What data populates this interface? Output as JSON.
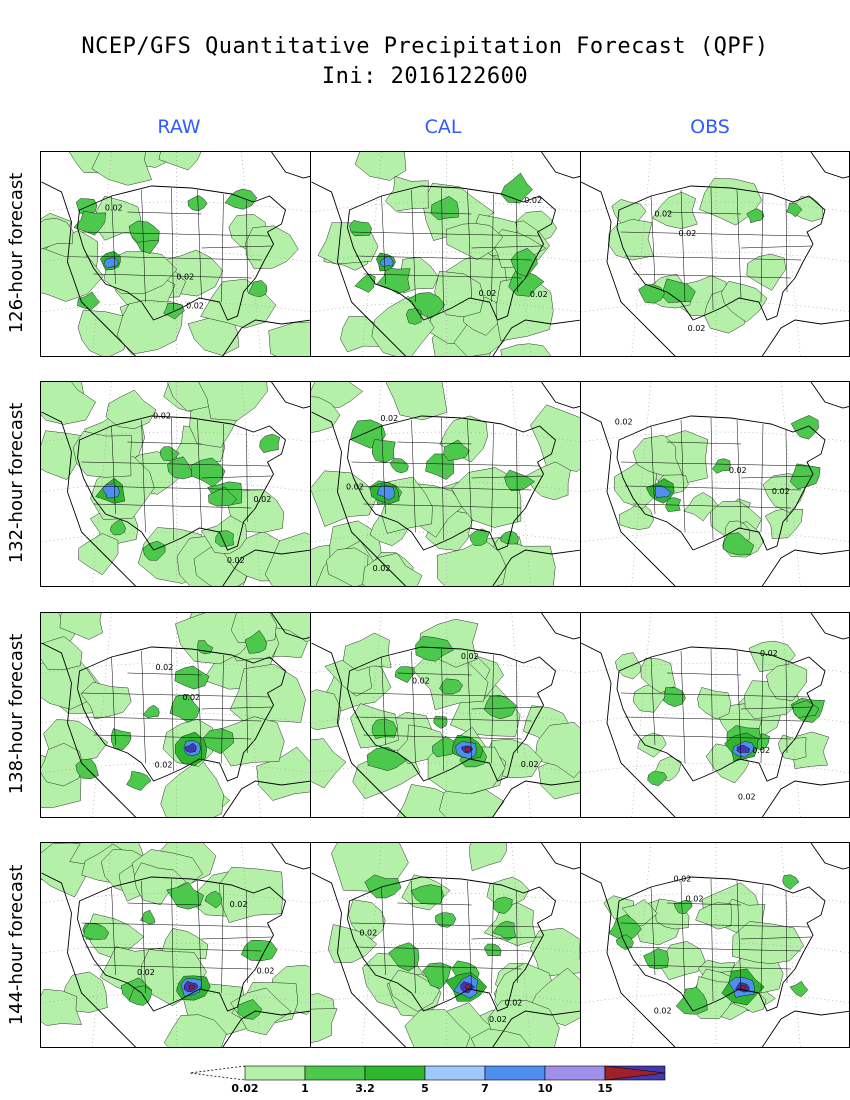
{
  "title": {
    "line1": "NCEP/GFS Quantitative Precipitation Forecast (QPF)",
    "line2": "Ini: 2016122600"
  },
  "columns": [
    "RAW",
    "CAL",
    "OBS"
  ],
  "rows": [
    "126-hour forecast",
    "132-hour forecast",
    "138-hour forecast",
    "144-hour forecast"
  ],
  "contour_label": "0.02",
  "colors": {
    "column_label": "#2d5cff",
    "land_outline": "#000000",
    "grid": "#9a9a9a",
    "c1": "#b4f0a8",
    "c2": "#4cc94c",
    "c3": "#2fb62f",
    "c4": "#9fc8ff",
    "c5": "#4f8ff0",
    "c6": "#a090ec",
    "c7": "#4338b0",
    "c8": "#a0202a"
  },
  "legend": {
    "ticks": [
      "0.02",
      "1",
      "3.2",
      "5",
      "7",
      "10",
      "15"
    ],
    "colors": [
      "#b4f0a8",
      "#4cc94c",
      "#2fb62f",
      "#9fc8ff",
      "#4f8ff0",
      "#a090ec",
      "#4338b0",
      "#a0202a"
    ]
  }
}
